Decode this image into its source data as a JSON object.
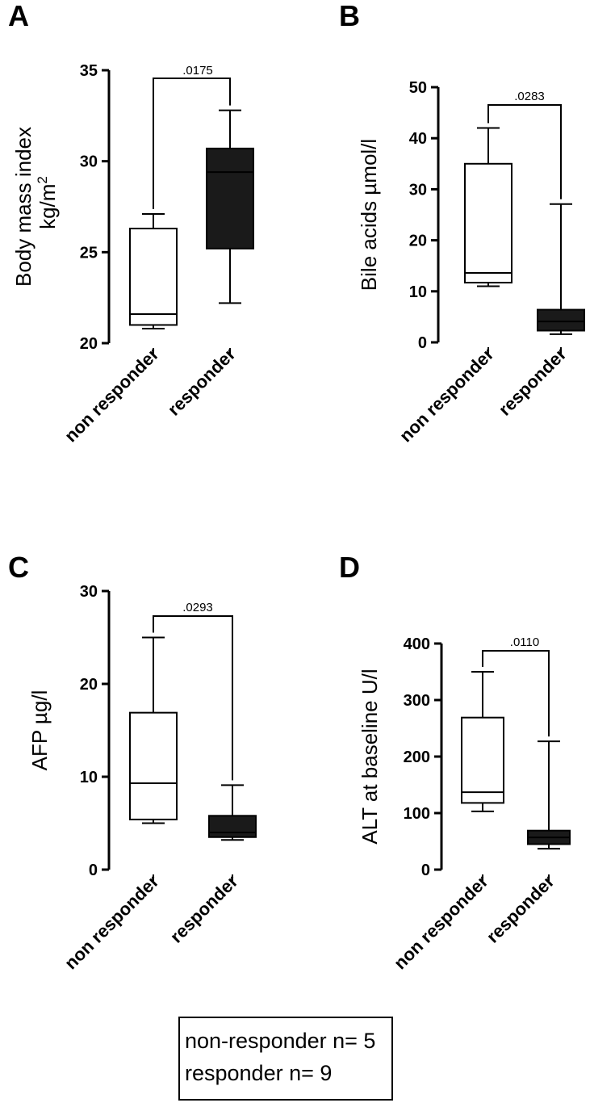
{
  "chart_data": [
    {
      "type": "box",
      "panel": "A",
      "ylabel": "Body mass index",
      "ylabel2": "kg/m",
      "ylabel2_sup": "2",
      "ylim": [
        20,
        35
      ],
      "yticks": [
        20,
        25,
        30,
        35
      ],
      "categories": [
        "non responder",
        "responder"
      ],
      "boxes": [
        {
          "min": 20.8,
          "q1": 21.0,
          "median": 21.6,
          "q3": 26.3,
          "max": 27.1,
          "fill": "#ffffff"
        },
        {
          "min": 22.2,
          "q1": 25.2,
          "median": 29.4,
          "q3": 30.7,
          "max": 32.8,
          "fill": "#1a1a1a"
        }
      ],
      "p_value": ".0175"
    },
    {
      "type": "box",
      "panel": "B",
      "ylabel": "Bile acids µmol/l",
      "ylim": [
        0,
        50
      ],
      "yticks": [
        0,
        10,
        20,
        30,
        40,
        50
      ],
      "categories": [
        "non responder",
        "responder"
      ],
      "boxes": [
        {
          "min": 11.0,
          "q1": 11.7,
          "median": 13.6,
          "q3": 35.0,
          "max": 42.0,
          "fill": "#ffffff"
        },
        {
          "min": 1.6,
          "q1": 2.3,
          "median": 4.1,
          "q3": 6.4,
          "max": 27.1,
          "fill": "#1a1a1a"
        }
      ],
      "p_value": ".0283"
    },
    {
      "type": "box",
      "panel": "C",
      "ylabel": "AFP µg/l",
      "ylim": [
        0,
        30
      ],
      "yticks": [
        0,
        10,
        20,
        30
      ],
      "categories": [
        "non responder",
        "responder"
      ],
      "boxes": [
        {
          "min": 5.0,
          "q1": 5.4,
          "median": 9.3,
          "q3": 16.9,
          "max": 25.0,
          "fill": "#ffffff"
        },
        {
          "min": 3.2,
          "q1": 3.5,
          "median": 4.0,
          "q3": 5.8,
          "max": 9.1,
          "fill": "#1a1a1a"
        }
      ],
      "p_value": ".0293"
    },
    {
      "type": "box",
      "panel": "D",
      "ylabel": "ALT at baseline U/l",
      "ylim": [
        0,
        400
      ],
      "yticks": [
        0,
        100,
        200,
        300,
        400
      ],
      "categories": [
        "non responder",
        "responder"
      ],
      "boxes": [
        {
          "min": 103,
          "q1": 118,
          "median": 137,
          "q3": 269,
          "max": 350,
          "fill": "#ffffff"
        },
        {
          "min": 37,
          "q1": 45,
          "median": 57,
          "q3": 69,
          "max": 227,
          "fill": "#1a1a1a"
        }
      ],
      "p_value": ".0110"
    }
  ],
  "legend": {
    "line1": "non-responder n= 5",
    "line2": "responder n= 9"
  }
}
